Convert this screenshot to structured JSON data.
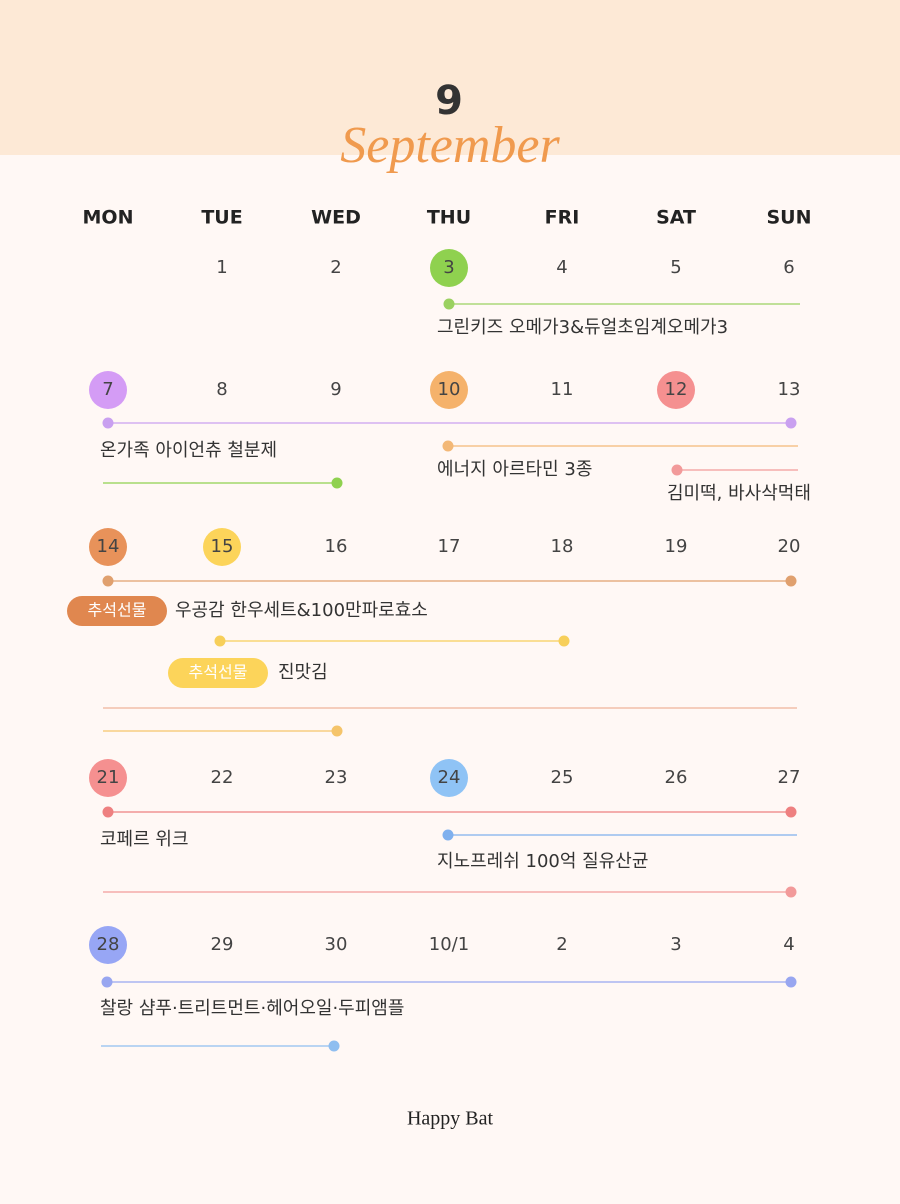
{
  "header": {
    "month_number": "9",
    "month_name": "September"
  },
  "weekdays": [
    "MON",
    "TUE",
    "WED",
    "THU",
    "FRI",
    "SAT",
    "SUN"
  ],
  "weeks": [
    {
      "days": [
        null,
        "1",
        "2",
        "3",
        "4",
        "5",
        "6"
      ],
      "events": [
        {
          "label": "그린키즈 오메가3&듀얼초임계오메가3"
        }
      ]
    },
    {
      "days": [
        "7",
        "8",
        "9",
        "10",
        "11",
        "12",
        "13"
      ],
      "events": [
        {
          "label": "온가족 아이언츄 철분제"
        },
        {
          "label": "에너지 아르타민 3종"
        },
        {
          "label": "김미떡, 바사삭먹태"
        }
      ]
    },
    {
      "days": [
        "14",
        "15",
        "16",
        "17",
        "18",
        "19",
        "20"
      ],
      "events": [
        {
          "tag": "추석선물",
          "label": "우공감 한우세트&100만파로효소"
        },
        {
          "tag": "추석선물",
          "label": "진맛김"
        }
      ]
    },
    {
      "days": [
        "21",
        "22",
        "23",
        "24",
        "25",
        "26",
        "27"
      ],
      "events": [
        {
          "label": "코페르 위크"
        },
        {
          "label": "지노프레쉬 100억 질유산균"
        }
      ]
    },
    {
      "days": [
        "28",
        "29",
        "30",
        "10/1",
        "2",
        "3",
        "4"
      ],
      "events": [
        {
          "label": "찰랑 샴푸·트리트먼트·헤어오일·두피앰플"
        }
      ]
    }
  ],
  "footer": "Happy Bat"
}
